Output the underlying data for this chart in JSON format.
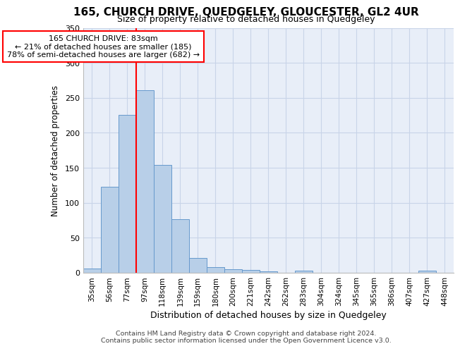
{
  "title": "165, CHURCH DRIVE, QUEDGELEY, GLOUCESTER, GL2 4UR",
  "subtitle": "Size of property relative to detached houses in Quedgeley",
  "xlabel": "Distribution of detached houses by size in Quedgeley",
  "ylabel": "Number of detached properties",
  "bar_labels": [
    "35sqm",
    "56sqm",
    "77sqm",
    "97sqm",
    "118sqm",
    "139sqm",
    "159sqm",
    "180sqm",
    "200sqm",
    "221sqm",
    "242sqm",
    "262sqm",
    "283sqm",
    "304sqm",
    "324sqm",
    "345sqm",
    "365sqm",
    "386sqm",
    "407sqm",
    "427sqm",
    "448sqm"
  ],
  "bar_values": [
    6,
    123,
    226,
    261,
    154,
    77,
    21,
    8,
    5,
    4,
    2,
    0,
    3,
    0,
    0,
    0,
    0,
    0,
    0,
    3,
    0
  ],
  "bar_color": "#b8cfe8",
  "bar_edgecolor": "#6699cc",
  "vline_color": "red",
  "vline_pos": 2.5,
  "annotation_title": "165 CHURCH DRIVE: 83sqm",
  "annotation_line1": "← 21% of detached houses are smaller (185)",
  "annotation_line2": "78% of semi-detached houses are larger (682) →",
  "annotation_box_facecolor": "white",
  "annotation_box_edgecolor": "red",
  "ylim": [
    0,
    350
  ],
  "yticks": [
    0,
    50,
    100,
    150,
    200,
    250,
    300,
    350
  ],
  "grid_color": "#c8d4e8",
  "background_color": "#e8eef8",
  "footer_line1": "Contains HM Land Registry data © Crown copyright and database right 2024.",
  "footer_line2": "Contains public sector information licensed under the Open Government Licence v3.0."
}
